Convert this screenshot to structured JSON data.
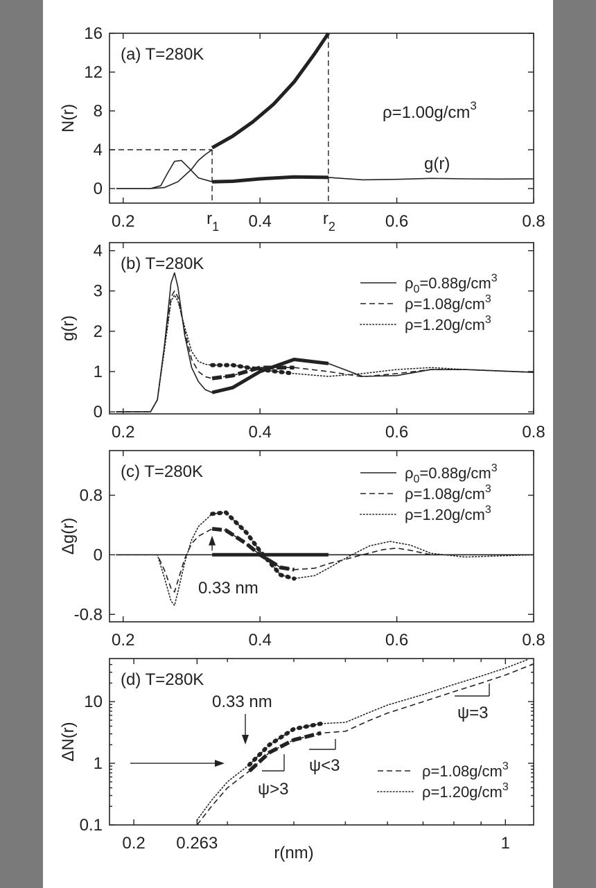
{
  "chart_data": [
    {
      "id": "a",
      "type": "line",
      "panel_label": "(a) T=280K",
      "ylabel": "N(r)",
      "xlim": [
        0.18,
        0.8
      ],
      "ylim": [
        -1.5,
        16
      ],
      "xticks": [
        0.2,
        0.4,
        0.6,
        0.8
      ],
      "xtick_labels": [
        "0.2",
        "0.4",
        "0.6",
        "0.8"
      ],
      "yticks": [
        0,
        4,
        8,
        12,
        16
      ],
      "ytick_labels": [
        "0",
        "4",
        "8",
        "12",
        "16"
      ],
      "annotations": {
        "density": "ρ=1.00g/cm",
        "density_exp": "3",
        "gr_label": "g(r)",
        "r1": "r",
        "r1_sub": "1",
        "r2": "r",
        "r2_sub": "2"
      },
      "markers": {
        "r1": 0.33,
        "r2": 0.5,
        "n_r1": 4
      },
      "series": [
        {
          "name": "N(r)",
          "style": "thick",
          "x": [
            0.33,
            0.36,
            0.39,
            0.42,
            0.45,
            0.48,
            0.5
          ],
          "y": [
            4.2,
            5.4,
            6.9,
            8.7,
            11.0,
            13.9,
            16.0
          ]
        },
        {
          "name": "N(r) thin",
          "style": "solid",
          "x": [
            0.19,
            0.24,
            0.26,
            0.28,
            0.3,
            0.31,
            0.32,
            0.33
          ],
          "y": [
            0,
            0,
            0.1,
            0.7,
            2.0,
            2.9,
            3.5,
            4.0
          ]
        },
        {
          "name": "g(r)",
          "style": "solid",
          "x": [
            0.19,
            0.24,
            0.255,
            0.265,
            0.275,
            0.285,
            0.295,
            0.31,
            0.33,
            0.36,
            0.4,
            0.45,
            0.5,
            0.55,
            0.6,
            0.65,
            0.7,
            0.75,
            0.8
          ],
          "y": [
            0,
            0,
            0.3,
            1.6,
            2.8,
            2.9,
            2.2,
            1.1,
            0.7,
            0.75,
            1.0,
            1.2,
            1.15,
            0.9,
            0.95,
            1.05,
            1.0,
            0.98,
            1.0
          ]
        },
        {
          "name": "g(r) thick",
          "style": "thick",
          "x": [
            0.33,
            0.36,
            0.4,
            0.45,
            0.5
          ],
          "y": [
            0.7,
            0.75,
            1.0,
            1.2,
            1.15
          ]
        }
      ]
    },
    {
      "id": "b",
      "type": "line",
      "panel_label": "(b) T=280K",
      "ylabel": "g(r)",
      "xlim": [
        0.18,
        0.8
      ],
      "ylim": [
        -0.05,
        4.2
      ],
      "xticks": [
        0.2,
        0.4,
        0.6,
        0.8
      ],
      "xtick_labels": [
        "0.2",
        "0.4",
        "0.6",
        "0.8"
      ],
      "yticks": [
        0,
        1,
        2,
        3,
        4
      ],
      "ytick_labels": [
        "0",
        "1",
        "2",
        "3",
        "4"
      ],
      "legend": [
        {
          "label": "ρ",
          "sub": "0",
          "rest": "=0.88g/cm",
          "sup": "3",
          "style": "solid"
        },
        {
          "label": "ρ=1.08g/cm",
          "sup": "3",
          "style": "dashed"
        },
        {
          "label": "ρ=1.20g/cm",
          "sup": "3",
          "style": "dotted"
        }
      ],
      "series": [
        {
          "name": "ρ0=0.88g/cm3",
          "style": "solid",
          "x": [
            0.19,
            0.24,
            0.25,
            0.26,
            0.27,
            0.275,
            0.28,
            0.29,
            0.3,
            0.31,
            0.32,
            0.33,
            0.36,
            0.4,
            0.45,
            0.5,
            0.55,
            0.6,
            0.65,
            0.7,
            0.8
          ],
          "y": [
            0,
            0,
            0.3,
            1.6,
            3.2,
            3.45,
            3.1,
            1.9,
            1.1,
            0.75,
            0.55,
            0.48,
            0.6,
            1.0,
            1.3,
            1.2,
            0.88,
            0.9,
            1.05,
            1.05,
            0.98
          ]
        },
        {
          "name": "ρ=1.08g/cm3",
          "style": "dashed",
          "x": [
            0.19,
            0.24,
            0.25,
            0.26,
            0.27,
            0.275,
            0.28,
            0.29,
            0.3,
            0.31,
            0.32,
            0.33,
            0.36,
            0.4,
            0.45,
            0.5,
            0.55,
            0.6,
            0.65,
            0.7,
            0.8
          ],
          "y": [
            0,
            0,
            0.3,
            1.6,
            2.85,
            3.0,
            2.85,
            2.0,
            1.3,
            1.0,
            0.87,
            0.83,
            0.9,
            1.1,
            1.1,
            1.0,
            0.87,
            0.95,
            1.05,
            1.05,
            0.98
          ]
        },
        {
          "name": "ρ=1.20g/cm3",
          "style": "dotted",
          "x": [
            0.19,
            0.24,
            0.25,
            0.26,
            0.27,
            0.275,
            0.28,
            0.29,
            0.3,
            0.31,
            0.32,
            0.33,
            0.36,
            0.4,
            0.45,
            0.5,
            0.55,
            0.6,
            0.65,
            0.7,
            0.8
          ],
          "y": [
            0,
            0,
            0.3,
            1.5,
            2.75,
            2.9,
            2.75,
            2.1,
            1.5,
            1.25,
            1.18,
            1.16,
            1.16,
            1.05,
            0.95,
            0.88,
            0.95,
            1.05,
            1.1,
            1.05,
            0.98
          ]
        },
        {
          "name": "ρ0 thick",
          "style": "thick",
          "x": [
            0.33,
            0.36,
            0.4,
            0.45,
            0.5
          ],
          "y": [
            0.48,
            0.6,
            1.0,
            1.3,
            1.2
          ]
        },
        {
          "name": "ρ=1.08 thick",
          "style": "thickdash",
          "x": [
            0.33,
            0.36,
            0.4,
            0.45
          ],
          "y": [
            0.83,
            0.9,
            1.1,
            1.1
          ]
        },
        {
          "name": "ρ=1.20 thick",
          "style": "thickdot",
          "x": [
            0.33,
            0.36,
            0.4,
            0.45
          ],
          "y": [
            1.16,
            1.16,
            1.05,
            0.95
          ]
        }
      ]
    },
    {
      "id": "c",
      "type": "line",
      "panel_label": "(c) T=280K",
      "ylabel": "Δg(r)",
      "xlim": [
        0.18,
        0.8
      ],
      "ylim": [
        -0.9,
        1.4
      ],
      "xticks": [
        0.2,
        0.4,
        0.6,
        0.8
      ],
      "xtick_labels": [
        "0.2",
        "0.4",
        "0.6",
        "0.8"
      ],
      "yticks": [
        -0.8,
        0,
        0.8
      ],
      "ytick_labels": [
        "-0.8",
        "0",
        "0.8"
      ],
      "annotations": {
        "marker_label": "0.33 nm"
      },
      "legend": [
        {
          "label": "ρ",
          "sub": "0",
          "rest": "=0.88g/cm",
          "sup": "3",
          "style": "solid"
        },
        {
          "label": "ρ=1.08g/cm",
          "sup": "3",
          "style": "dashed"
        },
        {
          "label": "ρ=1.20g/cm",
          "sup": "3",
          "style": "dotted"
        }
      ],
      "series": [
        {
          "name": "ρ0=0.88g/cm3",
          "style": "solid",
          "x": [
            0.19,
            0.8
          ],
          "y": [
            0,
            0
          ]
        },
        {
          "name": "ρ=1.08g/cm3",
          "style": "dashed",
          "x": [
            0.19,
            0.25,
            0.26,
            0.27,
            0.275,
            0.28,
            0.29,
            0.3,
            0.31,
            0.33,
            0.35,
            0.38,
            0.4,
            0.43,
            0.45,
            0.48,
            0.5,
            0.55,
            0.58,
            0.6,
            0.62,
            0.65,
            0.7,
            0.8
          ],
          "y": [
            0,
            0,
            -0.2,
            -0.45,
            -0.5,
            -0.35,
            -0.05,
            0.15,
            0.25,
            0.35,
            0.33,
            0.15,
            0.0,
            -0.17,
            -0.2,
            -0.18,
            -0.12,
            0.0,
            0.07,
            0.09,
            0.06,
            0.0,
            0.0,
            0.0
          ]
        },
        {
          "name": "ρ=1.20g/cm3",
          "style": "dotted",
          "x": [
            0.19,
            0.25,
            0.26,
            0.27,
            0.275,
            0.28,
            0.29,
            0.3,
            0.31,
            0.33,
            0.35,
            0.38,
            0.4,
            0.43,
            0.45,
            0.48,
            0.5,
            0.53,
            0.56,
            0.59,
            0.62,
            0.65,
            0.7,
            0.8
          ],
          "y": [
            0,
            0,
            -0.3,
            -0.62,
            -0.68,
            -0.5,
            -0.1,
            0.2,
            0.38,
            0.55,
            0.57,
            0.3,
            0.05,
            -0.27,
            -0.32,
            -0.28,
            -0.18,
            -0.02,
            0.12,
            0.18,
            0.13,
            0.02,
            -0.03,
            0.0
          ]
        },
        {
          "name": "ρ0 thick",
          "style": "thick",
          "x": [
            0.33,
            0.5
          ],
          "y": [
            0,
            0
          ]
        },
        {
          "name": "ρ=1.08 thick",
          "style": "thickdash",
          "x": [
            0.33,
            0.35,
            0.38,
            0.4,
            0.43,
            0.45
          ],
          "y": [
            0.35,
            0.33,
            0.15,
            0.0,
            -0.17,
            -0.2
          ]
        },
        {
          "name": "ρ=1.20 thick",
          "style": "thickdot",
          "x": [
            0.33,
            0.35,
            0.38,
            0.4,
            0.43,
            0.45
          ],
          "y": [
            0.55,
            0.57,
            0.3,
            0.05,
            -0.27,
            -0.32
          ]
        }
      ]
    },
    {
      "id": "d",
      "type": "line",
      "scale": "log-log",
      "panel_label": "(d) T=280K",
      "ylabel": "ΔN(r)",
      "xlabel": "r(nm)",
      "xlim": [
        0.18,
        1.13
      ],
      "ylim": [
        0.1,
        50
      ],
      "xticks": [
        0.2,
        0.263,
        1
      ],
      "xtick_labels": [
        "0.2",
        "0.263",
        "1"
      ],
      "yticks": [
        0.1,
        1,
        10
      ],
      "ytick_labels": [
        "0.1",
        "1",
        "10"
      ],
      "annotations": {
        "marker_label": "0.33 nm",
        "psi_gt": "ψ>3",
        "psi_lt": "ψ<3",
        "psi_eq": "ψ=3"
      },
      "legend": [
        {
          "label": "ρ=1.08g/cm",
          "sup": "3",
          "style": "dashed"
        },
        {
          "label": "ρ=1.20g/cm",
          "sup": "3",
          "style": "dotted"
        }
      ],
      "series": [
        {
          "name": "ρ=1.08g/cm3",
          "style": "dashed",
          "x": [
            0.263,
            0.28,
            0.3,
            0.33,
            0.36,
            0.4,
            0.45,
            0.5,
            0.55,
            0.6,
            0.7,
            0.8,
            0.9,
            1.0,
            1.13
          ],
          "y": [
            0.1,
            0.2,
            0.4,
            0.75,
            1.5,
            2.4,
            3.1,
            3.3,
            4.8,
            6.5,
            10,
            14.5,
            20,
            27,
            41
          ]
        },
        {
          "name": "ρ=1.20g/cm3",
          "style": "dotted",
          "x": [
            0.263,
            0.28,
            0.3,
            0.33,
            0.36,
            0.4,
            0.45,
            0.5,
            0.55,
            0.6,
            0.7,
            0.8,
            0.9,
            1.0,
            1.1
          ],
          "y": [
            0.12,
            0.25,
            0.5,
            0.95,
            2.0,
            3.6,
            4.4,
            4.6,
            6.5,
            8.8,
            13,
            19,
            26,
            35,
            48
          ]
        },
        {
          "name": "ρ=1.08 thick",
          "style": "thickdash",
          "x": [
            0.33,
            0.36,
            0.4,
            0.45
          ],
          "y": [
            0.75,
            1.5,
            2.4,
            3.1
          ]
        },
        {
          "name": "ρ=1.20 thick",
          "style": "thickdot",
          "x": [
            0.33,
            0.36,
            0.4,
            0.45
          ],
          "y": [
            0.95,
            2.0,
            3.6,
            4.4
          ]
        }
      ]
    }
  ]
}
